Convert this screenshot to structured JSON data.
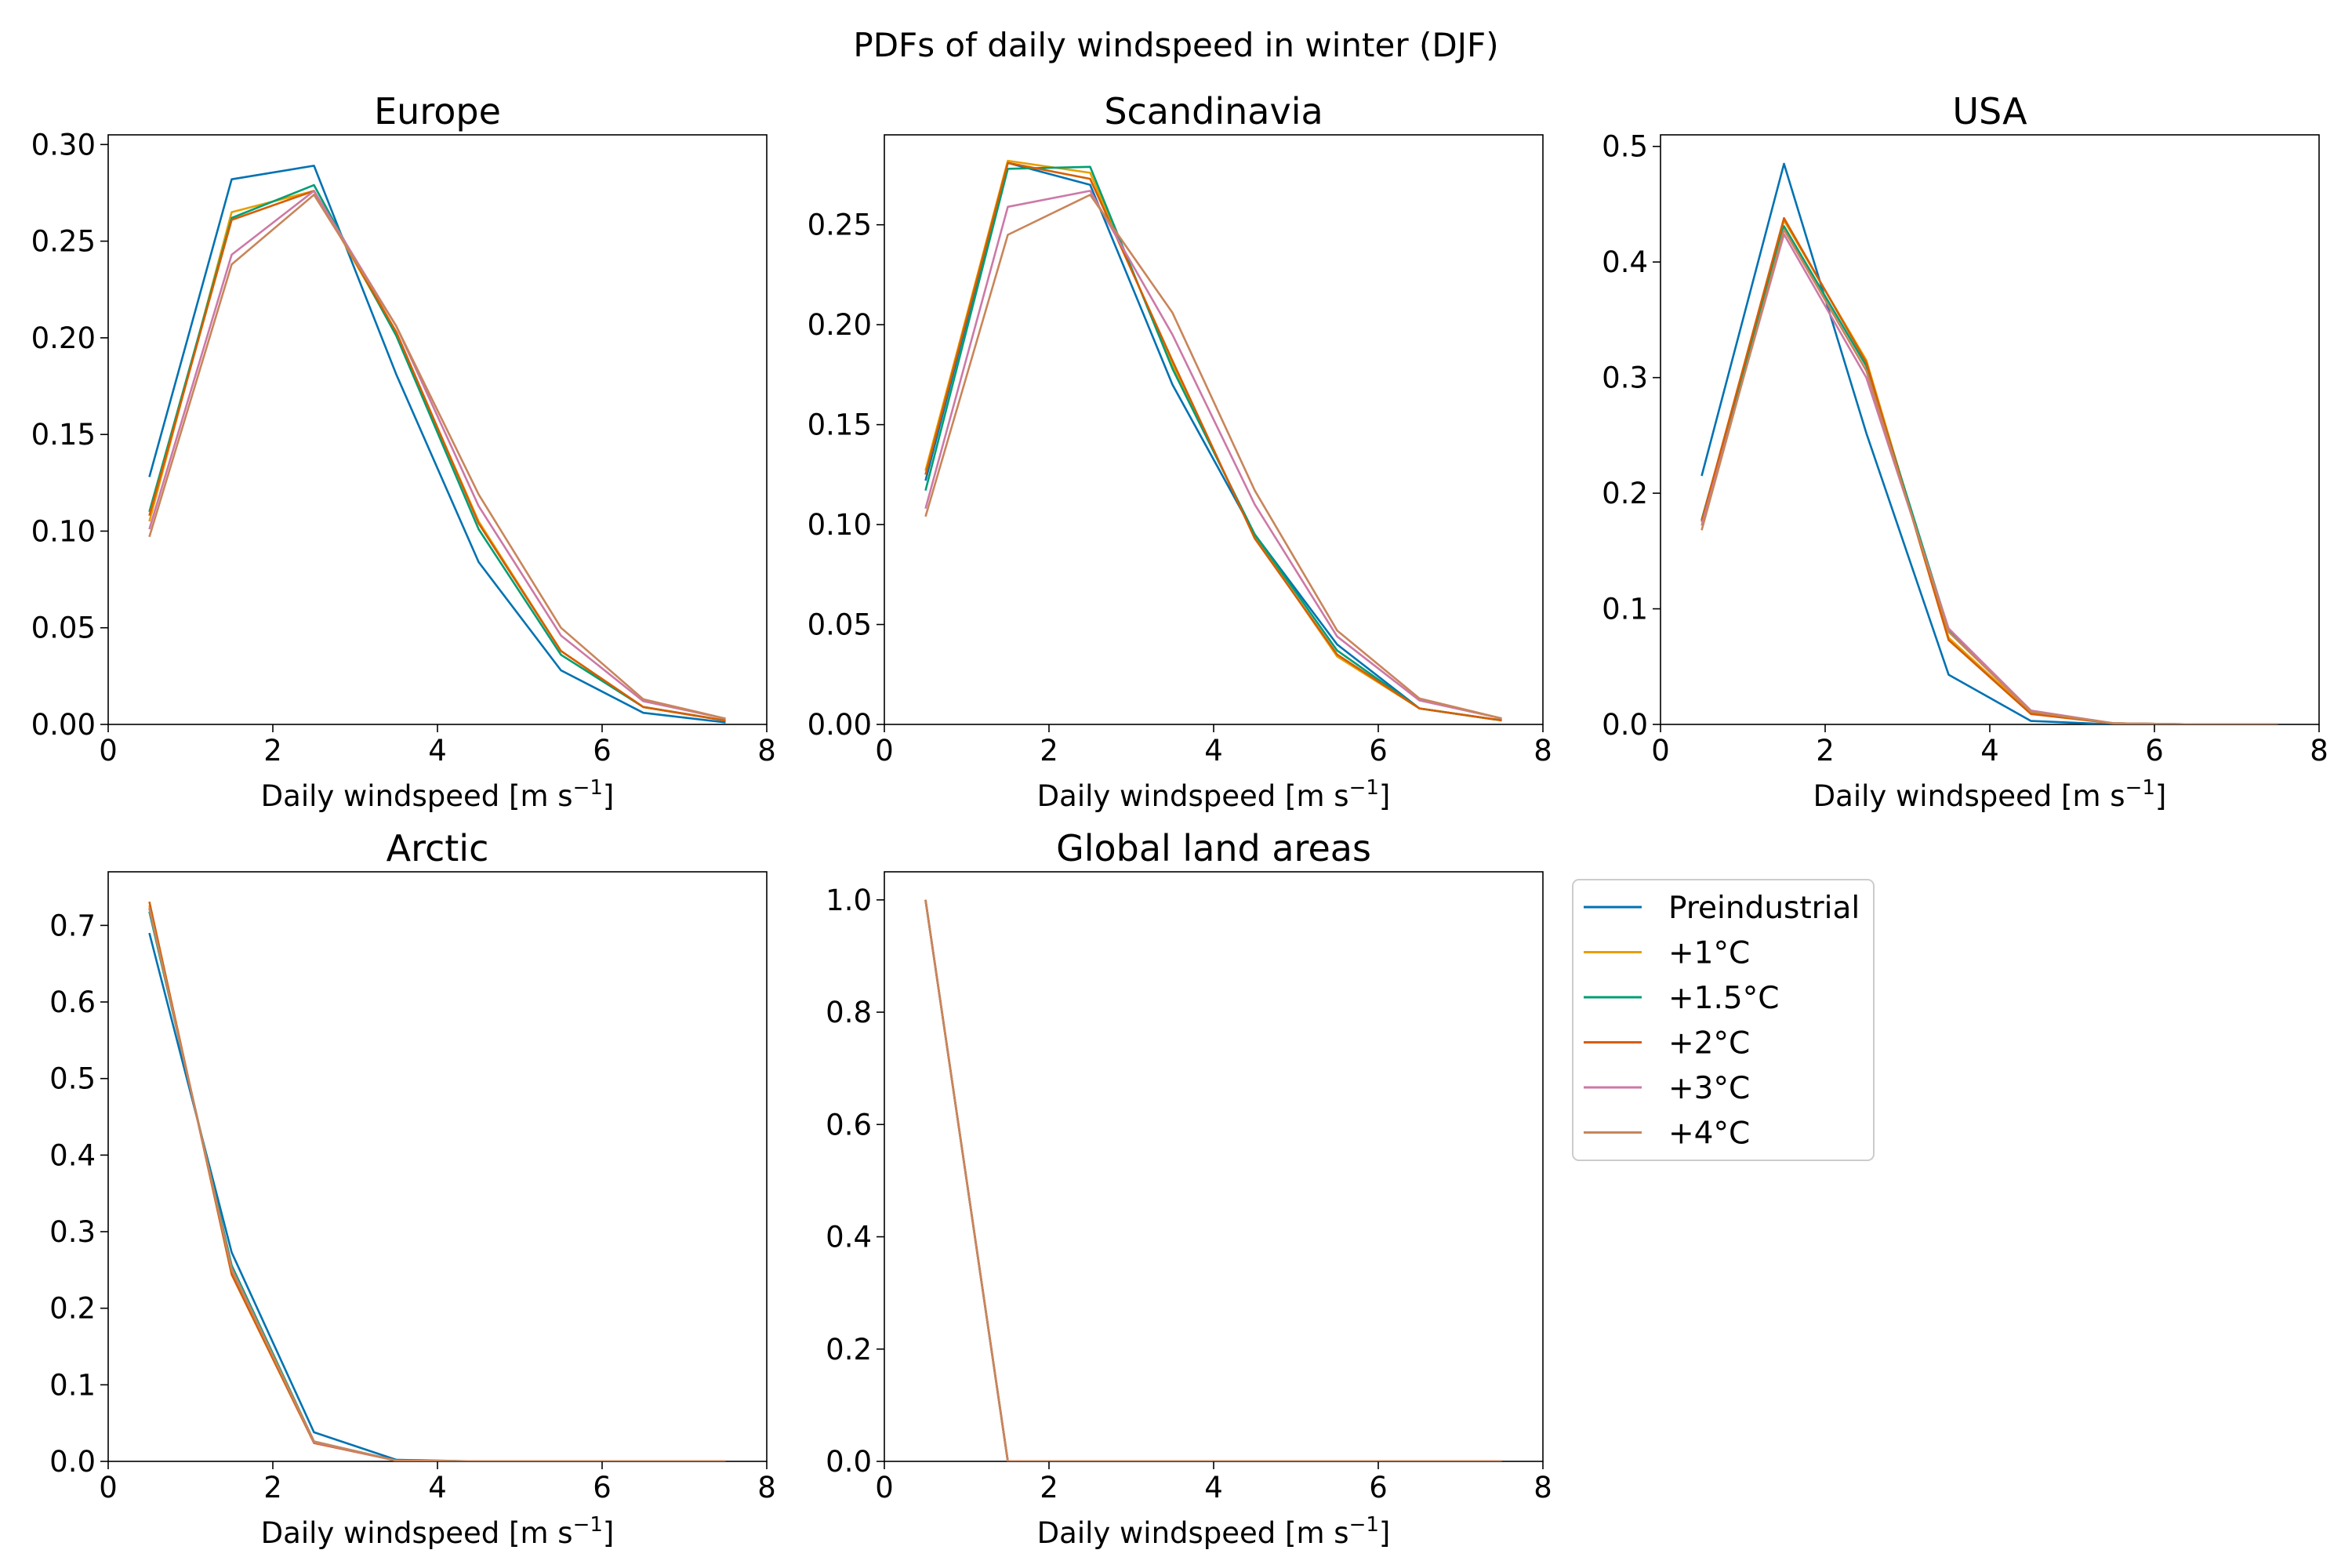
{
  "figure": {
    "title": "PDFs of daily windspeed in winter (DJF)"
  },
  "chart_data": [
    {
      "type": "line",
      "title": "Europe",
      "xlabel": "Daily windspeed [m s",
      "xlabel_sup": "−1",
      "xlabel_end": "]",
      "ylabel": "",
      "xlim": [
        0,
        8
      ],
      "ylim": [
        0,
        0.305
      ],
      "xticks": [
        "0",
        "2",
        "4",
        "6",
        "8"
      ],
      "yticks": [
        "0.00",
        "0.05",
        "0.10",
        "0.15",
        "0.20",
        "0.25",
        "0.30"
      ],
      "x": [
        0.5,
        1.5,
        2.5,
        3.5,
        4.5,
        5.5,
        6.5,
        7.5
      ],
      "series": [
        {
          "name": "Preindustrial",
          "values": [
            0.128,
            0.282,
            0.289,
            0.181,
            0.084,
            0.028,
            0.006,
            0.001
          ]
        },
        {
          "name": "+1°C",
          "values": [
            0.105,
            0.265,
            0.276,
            0.202,
            0.105,
            0.038,
            0.009,
            0.002
          ]
        },
        {
          "name": "+1.5°C",
          "values": [
            0.11,
            0.262,
            0.279,
            0.201,
            0.101,
            0.036,
            0.009,
            0.002
          ]
        },
        {
          "name": "+2°C",
          "values": [
            0.108,
            0.261,
            0.276,
            0.203,
            0.104,
            0.038,
            0.009,
            0.002
          ]
        },
        {
          "name": "+3°C",
          "values": [
            0.101,
            0.243,
            0.276,
            0.206,
            0.113,
            0.046,
            0.012,
            0.003
          ]
        },
        {
          "name": "+4°C",
          "values": [
            0.097,
            0.238,
            0.274,
            0.206,
            0.119,
            0.05,
            0.013,
            0.003
          ]
        }
      ]
    },
    {
      "type": "line",
      "title": "Scandinavia",
      "xlabel": "Daily windspeed [m s",
      "xlabel_sup": "−1",
      "xlabel_end": "]",
      "ylabel": "",
      "xlim": [
        0,
        8
      ],
      "ylim": [
        0,
        0.295
      ],
      "xticks": [
        "0",
        "2",
        "4",
        "6",
        "8"
      ],
      "yticks": [
        "0.00",
        "0.05",
        "0.10",
        "0.15",
        "0.20",
        "0.25"
      ],
      "x": [
        0.5,
        1.5,
        2.5,
        3.5,
        4.5,
        5.5,
        6.5,
        7.5
      ],
      "series": [
        {
          "name": "Preindustrial",
          "values": [
            0.122,
            0.281,
            0.27,
            0.17,
            0.095,
            0.04,
            0.008,
            0.002
          ]
        },
        {
          "name": "+1°C",
          "values": [
            0.127,
            0.282,
            0.276,
            0.18,
            0.094,
            0.034,
            0.008,
            0.002
          ]
        },
        {
          "name": "+1.5°C",
          "values": [
            0.117,
            0.278,
            0.279,
            0.178,
            0.095,
            0.037,
            0.008,
            0.002
          ]
        },
        {
          "name": "+2°C",
          "values": [
            0.125,
            0.281,
            0.273,
            0.182,
            0.093,
            0.035,
            0.008,
            0.002
          ]
        },
        {
          "name": "+3°C",
          "values": [
            0.108,
            0.259,
            0.267,
            0.195,
            0.11,
            0.044,
            0.012,
            0.003
          ]
        },
        {
          "name": "+4°C",
          "values": [
            0.104,
            0.245,
            0.265,
            0.206,
            0.117,
            0.047,
            0.013,
            0.003
          ]
        }
      ]
    },
    {
      "type": "line",
      "title": "USA",
      "xlabel": "Daily windspeed [m s",
      "xlabel_sup": "−1",
      "xlabel_end": "]",
      "ylabel": "",
      "xlim": [
        0,
        8
      ],
      "ylim": [
        0,
        0.51
      ],
      "xticks": [
        "0",
        "2",
        "4",
        "6",
        "8"
      ],
      "yticks": [
        "0.0",
        "0.1",
        "0.2",
        "0.3",
        "0.4",
        "0.5"
      ],
      "x": [
        0.5,
        1.5,
        2.5,
        3.5,
        4.5,
        5.5,
        6.5,
        7.5
      ],
      "series": [
        {
          "name": "Preindustrial",
          "values": [
            0.215,
            0.485,
            0.252,
            0.043,
            0.003,
            0.0,
            0.0,
            0.0
          ]
        },
        {
          "name": "+1°C",
          "values": [
            0.175,
            0.436,
            0.315,
            0.075,
            0.01,
            0.001,
            0.0,
            0.0
          ]
        },
        {
          "name": "+1.5°C",
          "values": [
            0.177,
            0.431,
            0.31,
            0.082,
            0.011,
            0.001,
            0.0,
            0.0
          ]
        },
        {
          "name": "+2°C",
          "values": [
            0.176,
            0.438,
            0.313,
            0.073,
            0.009,
            0.001,
            0.0,
            0.0
          ]
        },
        {
          "name": "+3°C",
          "values": [
            0.172,
            0.424,
            0.3,
            0.083,
            0.012,
            0.001,
            0.0,
            0.0
          ]
        },
        {
          "name": "+4°C",
          "values": [
            0.168,
            0.428,
            0.306,
            0.08,
            0.011,
            0.001,
            0.0,
            0.0
          ]
        }
      ]
    },
    {
      "type": "line",
      "title": "Arctic",
      "xlabel": "Daily windspeed [m s",
      "xlabel_sup": "−1",
      "xlabel_end": "]",
      "ylabel": "",
      "xlim": [
        0,
        8
      ],
      "ylim": [
        0,
        0.77
      ],
      "xticks": [
        "0",
        "2",
        "4",
        "6",
        "8"
      ],
      "yticks": [
        "0.0",
        "0.1",
        "0.2",
        "0.3",
        "0.4",
        "0.5",
        "0.6",
        "0.7"
      ],
      "x": [
        0.5,
        1.5,
        2.5,
        3.5,
        4.5,
        5.5,
        6.5,
        7.5
      ],
      "series": [
        {
          "name": "Preindustrial",
          "values": [
            0.69,
            0.273,
            0.038,
            0.002,
            0.0,
            0.0,
            0.0,
            0.0
          ]
        },
        {
          "name": "+1°C",
          "values": [
            0.726,
            0.248,
            0.025,
            0.001,
            0.0,
            0.0,
            0.0,
            0.0
          ]
        },
        {
          "name": "+1.5°C",
          "values": [
            0.718,
            0.256,
            0.026,
            0.001,
            0.0,
            0.0,
            0.0,
            0.0
          ]
        },
        {
          "name": "+2°C",
          "values": [
            0.731,
            0.244,
            0.024,
            0.001,
            0.0,
            0.0,
            0.0,
            0.0
          ]
        },
        {
          "name": "+3°C",
          "values": [
            0.722,
            0.252,
            0.025,
            0.001,
            0.0,
            0.0,
            0.0,
            0.0
          ]
        },
        {
          "name": "+4°C",
          "values": [
            0.723,
            0.25,
            0.026,
            0.001,
            0.0,
            0.0,
            0.0,
            0.0
          ]
        }
      ]
    },
    {
      "type": "line",
      "title": "Global land areas",
      "xlabel": "Daily windspeed [m s",
      "xlabel_sup": "−1",
      "xlabel_end": "]",
      "ylabel": "",
      "xlim": [
        0,
        8
      ],
      "ylim": [
        0,
        1.05
      ],
      "xticks": [
        "0",
        "2",
        "4",
        "6",
        "8"
      ],
      "yticks": [
        "0.0",
        "0.2",
        "0.4",
        "0.6",
        "0.8",
        "1.0"
      ],
      "x": [
        0.5,
        1.5,
        2.5,
        3.5,
        4.5,
        5.5,
        6.5,
        7.5
      ],
      "series": [
        {
          "name": "Preindustrial",
          "values": [
            1.0,
            0.0,
            0.0,
            0.0,
            0.0,
            0.0,
            0.0,
            0.0
          ]
        },
        {
          "name": "+1°C",
          "values": [
            1.0,
            0.0,
            0.0,
            0.0,
            0.0,
            0.0,
            0.0,
            0.0
          ]
        },
        {
          "name": "+1.5°C",
          "values": [
            1.0,
            0.0,
            0.0,
            0.0,
            0.0,
            0.0,
            0.0,
            0.0
          ]
        },
        {
          "name": "+2°C",
          "values": [
            1.0,
            0.0,
            0.0,
            0.0,
            0.0,
            0.0,
            0.0,
            0.0
          ]
        },
        {
          "name": "+3°C",
          "values": [
            1.0,
            0.0,
            0.0,
            0.0,
            0.0,
            0.0,
            0.0,
            0.0
          ]
        },
        {
          "name": "+4°C",
          "values": [
            1.0,
            0.0,
            0.0,
            0.0,
            0.0,
            0.0,
            0.0,
            0.0
          ]
        }
      ]
    }
  ],
  "legend": {
    "placement": "right of bottom row",
    "entries": [
      {
        "label": "Preindustrial",
        "color": "#0072b2"
      },
      {
        "label": "+1°C",
        "color": "#e69f00"
      },
      {
        "label": "+1.5°C",
        "color": "#009e73"
      },
      {
        "label": "+2°C",
        "color": "#d55e00"
      },
      {
        "label": "+3°C",
        "color": "#cc79a7"
      },
      {
        "label": "+4°C",
        "color": "#c8855a"
      }
    ]
  }
}
